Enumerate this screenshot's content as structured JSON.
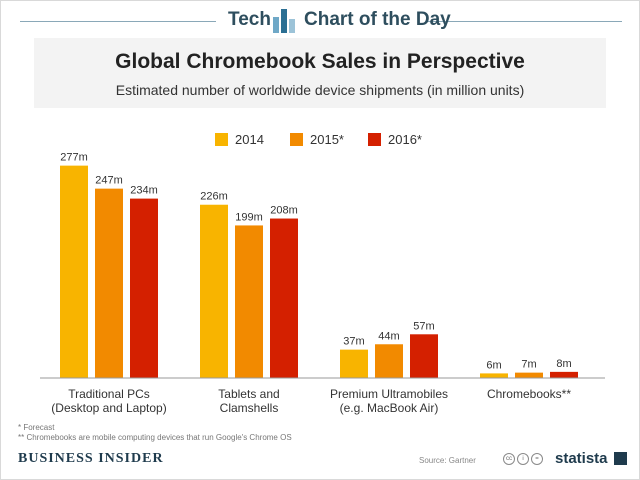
{
  "header": {
    "tech_label": "Tech",
    "chart_label": "Chart of the Day"
  },
  "chart_data": {
    "type": "bar",
    "title": "Global Chromebook Sales in Perspective",
    "subtitle": "Estimated number of worldwide device shipments (in million units)",
    "categories": [
      [
        "Traditional PCs",
        "(Desktop and Laptop)"
      ],
      [
        "Tablets and",
        "Clamshells"
      ],
      [
        "Premium Ultramobiles",
        "(e.g. MacBook Air)"
      ],
      [
        "Chromebooks**"
      ]
    ],
    "series": [
      {
        "name": "2014",
        "color": "#f8b400",
        "values": [
          277,
          226,
          37,
          6
        ],
        "labels": [
          "277m",
          "226m",
          "37m",
          "6m"
        ]
      },
      {
        "name": "2015*",
        "color": "#f28a00",
        "values": [
          247,
          199,
          44,
          7
        ],
        "labels": [
          "247m",
          "199m",
          "44m",
          "7m"
        ]
      },
      {
        "name": "2016*",
        "color": "#d42000",
        "values": [
          234,
          208,
          57,
          8
        ],
        "labels": [
          "234m",
          "208m",
          "57m",
          "8m"
        ]
      }
    ],
    "ylim": [
      0,
      300
    ],
    "xlabel": "",
    "ylabel": "",
    "legend_position": "top-center",
    "grid": false
  },
  "footnotes": {
    "forecast": "* Forecast",
    "chromebooks": "** Chromebooks are mobile computing devices that run Google's Chrome OS"
  },
  "footer": {
    "brand": "BUSINESS INSIDER",
    "source": "Source: Gartner",
    "statista": "statista"
  },
  "colors": {
    "header_text": "#2e4e5e",
    "brand": "#1f3b4d",
    "axis": "#999999"
  }
}
